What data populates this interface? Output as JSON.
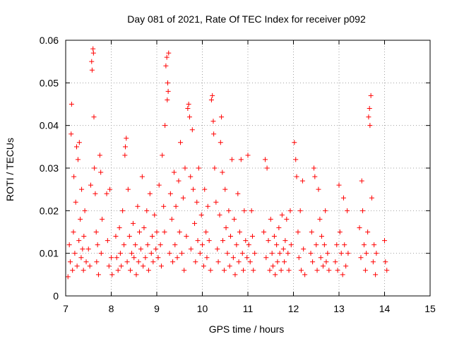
{
  "chart_data": {
    "type": "scatter",
    "title": "Day 081 of 2021, Rate Of TEC Index for receiver p092",
    "xlabel": "GPS time / hours",
    "ylabel": "ROTI / TECUs",
    "xlim": [
      7,
      15
    ],
    "ylim": [
      0,
      0.06
    ],
    "xticks": [
      7,
      8,
      9,
      10,
      11,
      12,
      13,
      14,
      15
    ],
    "yticks": [
      0,
      0.01,
      0.02,
      0.03,
      0.04,
      0.05,
      0.06
    ],
    "xtick_labels": [
      "7",
      "8",
      "9",
      "10",
      "11",
      "12",
      "13",
      "14",
      "15"
    ],
    "ytick_labels": [
      "0",
      "0.01",
      "0.02",
      "0.03",
      "0.04",
      "0.05",
      "0.06"
    ],
    "grid": true,
    "marker": "+",
    "color": "#ff0000",
    "series": [
      {
        "name": "ROTI",
        "points": [
          [
            7.05,
            0.0045
          ],
          [
            7.08,
            0.012
          ],
          [
            7.1,
            0.008
          ],
          [
            7.12,
            0.038
          ],
          [
            7.13,
            0.045
          ],
          [
            7.15,
            0.006
          ],
          [
            7.17,
            0.015
          ],
          [
            7.18,
            0.028
          ],
          [
            7.2,
            0.01
          ],
          [
            7.22,
            0.022
          ],
          [
            7.24,
            0.035
          ],
          [
            7.25,
            0.007
          ],
          [
            7.27,
            0.032
          ],
          [
            7.29,
            0.013
          ],
          [
            7.3,
            0.036
          ],
          [
            7.32,
            0.018
          ],
          [
            7.34,
            0.009
          ],
          [
            7.35,
            0.025
          ],
          [
            7.37,
            0.011
          ],
          [
            7.39,
            0.006
          ],
          [
            7.4,
            0.014
          ],
          [
            7.42,
            0.02
          ],
          [
            7.45,
            0.008
          ],
          [
            7.5,
            0.011
          ],
          [
            7.53,
            0.007
          ],
          [
            7.55,
            0.026
          ],
          [
            7.57,
            0.055
          ],
          [
            7.58,
            0.053
          ],
          [
            7.6,
            0.058
          ],
          [
            7.61,
            0.057
          ],
          [
            7.62,
            0.042
          ],
          [
            7.63,
            0.03
          ],
          [
            7.65,
            0.024
          ],
          [
            7.67,
            0.015
          ],
          [
            7.68,
            0.008
          ],
          [
            7.7,
            0.012
          ],
          [
            7.72,
            0.005
          ],
          [
            7.75,
            0.033
          ],
          [
            7.77,
            0.029
          ],
          [
            7.78,
            0.01
          ],
          [
            7.8,
            0.018
          ],
          [
            7.9,
            0.024
          ],
          [
            7.92,
            0.013
          ],
          [
            7.95,
            0.007
          ],
          [
            7.97,
            0.025
          ],
          [
            8.0,
            0.009
          ],
          [
            8.02,
            0.005
          ],
          [
            8.1,
            0.014
          ],
          [
            8.12,
            0.009
          ],
          [
            8.15,
            0.006
          ],
          [
            8.18,
            0.016
          ],
          [
            8.2,
            0.01
          ],
          [
            8.22,
            0.007
          ],
          [
            8.25,
            0.02
          ],
          [
            8.28,
            0.012
          ],
          [
            8.3,
            0.033
          ],
          [
            8.31,
            0.035
          ],
          [
            8.33,
            0.037
          ],
          [
            8.35,
            0.008
          ],
          [
            8.37,
            0.025
          ],
          [
            8.4,
            0.014
          ],
          [
            8.42,
            0.006
          ],
          [
            8.45,
            0.01
          ],
          [
            8.48,
            0.017
          ],
          [
            8.5,
            0.009
          ],
          [
            8.53,
            0.012
          ],
          [
            8.55,
            0.005
          ],
          [
            8.58,
            0.021
          ],
          [
            8.6,
            0.008
          ],
          [
            8.62,
            0.015
          ],
          [
            8.65,
            0.011
          ],
          [
            8.68,
            0.028
          ],
          [
            8.7,
            0.007
          ],
          [
            8.72,
            0.016
          ],
          [
            8.75,
            0.009
          ],
          [
            8.78,
            0.02
          ],
          [
            8.8,
            0.012
          ],
          [
            8.82,
            0.006
          ],
          [
            8.85,
            0.024
          ],
          [
            8.88,
            0.01
          ],
          [
            8.9,
            0.014
          ],
          [
            8.92,
            0.008
          ],
          [
            8.95,
            0.019
          ],
          [
            8.98,
            0.011
          ],
          [
            9.0,
            0.015
          ],
          [
            9.03,
            0.009
          ],
          [
            9.05,
            0.026
          ],
          [
            9.08,
            0.012
          ],
          [
            9.1,
            0.007
          ],
          [
            9.12,
            0.033
          ],
          [
            9.15,
            0.021
          ],
          [
            9.17,
            0.015
          ],
          [
            9.18,
            0.04
          ],
          [
            9.2,
            0.054
          ],
          [
            9.22,
            0.056
          ],
          [
            9.23,
            0.046
          ],
          [
            9.24,
            0.05
          ],
          [
            9.25,
            0.048
          ],
          [
            9.26,
            0.057
          ],
          [
            9.28,
            0.01
          ],
          [
            9.3,
            0.024
          ],
          [
            9.33,
            0.018
          ],
          [
            9.35,
            0.008
          ],
          [
            9.38,
            0.029
          ],
          [
            9.4,
            0.012
          ],
          [
            9.42,
            0.021
          ],
          [
            9.45,
            0.009
          ],
          [
            9.48,
            0.027
          ],
          [
            9.5,
            0.015
          ],
          [
            9.52,
            0.036
          ],
          [
            9.55,
            0.01
          ],
          [
            9.58,
            0.023
          ],
          [
            9.6,
            0.006
          ],
          [
            9.62,
            0.03
          ],
          [
            9.65,
            0.014
          ],
          [
            9.68,
            0.044
          ],
          [
            9.7,
            0.045
          ],
          [
            9.72,
            0.042
          ],
          [
            9.74,
            0.028
          ],
          [
            9.75,
            0.011
          ],
          [
            9.78,
            0.039
          ],
          [
            9.8,
            0.025
          ],
          [
            9.83,
            0.017
          ],
          [
            9.85,
            0.008
          ],
          [
            9.88,
            0.022
          ],
          [
            9.9,
            0.013
          ],
          [
            9.92,
            0.03
          ],
          [
            9.95,
            0.01
          ],
          [
            9.98,
            0.019
          ],
          [
            10.0,
            0.012
          ],
          [
            10.03,
            0.007
          ],
          [
            10.05,
            0.025
          ],
          [
            10.08,
            0.015
          ],
          [
            10.1,
            0.009
          ],
          [
            10.12,
            0.021
          ],
          [
            10.15,
            0.013
          ],
          [
            10.18,
            0.006
          ],
          [
            10.2,
            0.046
          ],
          [
            10.22,
            0.047
          ],
          [
            10.24,
            0.041
          ],
          [
            10.25,
            0.038
          ],
          [
            10.27,
            0.03
          ],
          [
            10.3,
            0.022
          ],
          [
            10.33,
            0.011
          ],
          [
            10.35,
            0.008
          ],
          [
            10.38,
            0.019
          ],
          [
            10.4,
            0.036
          ],
          [
            10.42,
            0.042
          ],
          [
            10.44,
            0.029
          ],
          [
            10.45,
            0.013
          ],
          [
            10.48,
            0.006
          ],
          [
            10.5,
            0.025
          ],
          [
            10.52,
            0.016
          ],
          [
            10.55,
            0.01
          ],
          [
            10.58,
            0.02
          ],
          [
            10.6,
            0.007
          ],
          [
            10.62,
            0.014
          ],
          [
            10.65,
            0.032
          ],
          [
            10.68,
            0.009
          ],
          [
            10.7,
            0.018
          ],
          [
            10.72,
            0.005
          ],
          [
            10.75,
            0.012
          ],
          [
            10.78,
            0.024
          ],
          [
            10.8,
            0.008
          ],
          [
            10.82,
            0.015
          ],
          [
            10.85,
            0.032
          ],
          [
            10.88,
            0.01
          ],
          [
            10.9,
            0.006
          ],
          [
            10.92,
            0.02
          ],
          [
            10.95,
            0.013
          ],
          [
            10.98,
            0.009
          ],
          [
            11.0,
            0.033
          ],
          [
            11.02,
            0.012
          ],
          [
            11.05,
            0.008
          ],
          [
            11.08,
            0.02
          ],
          [
            11.1,
            0.014
          ],
          [
            11.12,
            0.006
          ],
          [
            11.15,
            0.01
          ],
          [
            11.35,
            0.015
          ],
          [
            11.38,
            0.032
          ],
          [
            11.4,
            0.009
          ],
          [
            11.42,
            0.03
          ],
          [
            11.45,
            0.013
          ],
          [
            11.48,
            0.006
          ],
          [
            11.5,
            0.018
          ],
          [
            11.53,
            0.01
          ],
          [
            11.55,
            0.007
          ],
          [
            11.58,
            0.014
          ],
          [
            11.6,
            0.005
          ],
          [
            11.63,
            0.012
          ],
          [
            11.65,
            0.008
          ],
          [
            11.68,
            0.016
          ],
          [
            11.7,
            0.01
          ],
          [
            11.73,
            0.006
          ],
          [
            11.75,
            0.019
          ],
          [
            11.78,
            0.011
          ],
          [
            11.8,
            0.008
          ],
          [
            11.82,
            0.013
          ],
          [
            11.85,
            0.018
          ],
          [
            11.88,
            0.01
          ],
          [
            11.9,
            0.006
          ],
          [
            11.93,
            0.02
          ],
          [
            11.95,
            0.012
          ],
          [
            12.02,
            0.036
          ],
          [
            12.05,
            0.032
          ],
          [
            12.07,
            0.028
          ],
          [
            12.1,
            0.015
          ],
          [
            12.12,
            0.009
          ],
          [
            12.15,
            0.02
          ],
          [
            12.17,
            0.006
          ],
          [
            12.2,
            0.027
          ],
          [
            12.22,
            0.011
          ],
          [
            12.25,
            0.005
          ],
          [
            12.38,
            0.01
          ],
          [
            12.4,
            0.015
          ],
          [
            12.42,
            0.008
          ],
          [
            12.45,
            0.03
          ],
          [
            12.47,
            0.028
          ],
          [
            12.5,
            0.012
          ],
          [
            12.52,
            0.006
          ],
          [
            12.55,
            0.025
          ],
          [
            12.58,
            0.018
          ],
          [
            12.6,
            0.009
          ],
          [
            12.62,
            0.014
          ],
          [
            12.65,
            0.007
          ],
          [
            12.68,
            0.012
          ],
          [
            12.7,
            0.02
          ],
          [
            12.72,
            0.008
          ],
          [
            12.75,
            0.01
          ],
          [
            12.78,
            0.006
          ],
          [
            12.92,
            0.008
          ],
          [
            12.95,
            0.012
          ],
          [
            12.97,
            0.006
          ],
          [
            13.0,
            0.026
          ],
          [
            13.02,
            0.015
          ],
          [
            13.05,
            0.01
          ],
          [
            13.08,
            0.005
          ],
          [
            13.1,
            0.023
          ],
          [
            13.12,
            0.012
          ],
          [
            13.15,
            0.007
          ],
          [
            13.18,
            0.02
          ],
          [
            13.2,
            0.01
          ],
          [
            13.45,
            0.016
          ],
          [
            13.48,
            0.009
          ],
          [
            13.5,
            0.027
          ],
          [
            13.52,
            0.02
          ],
          [
            13.55,
            0.012
          ],
          [
            13.58,
            0.006
          ],
          [
            13.6,
            0.01
          ],
          [
            13.63,
            0.015
          ],
          [
            13.65,
            0.042
          ],
          [
            13.67,
            0.044
          ],
          [
            13.68,
            0.04
          ],
          [
            13.7,
            0.047
          ],
          [
            13.72,
            0.023
          ],
          [
            13.75,
            0.008
          ],
          [
            13.77,
            0.012
          ],
          [
            13.8,
            0.005
          ],
          [
            13.82,
            0.01
          ],
          [
            14.0,
            0.013
          ],
          [
            14.02,
            0.008
          ],
          [
            14.05,
            0.006
          ]
        ]
      }
    ]
  }
}
